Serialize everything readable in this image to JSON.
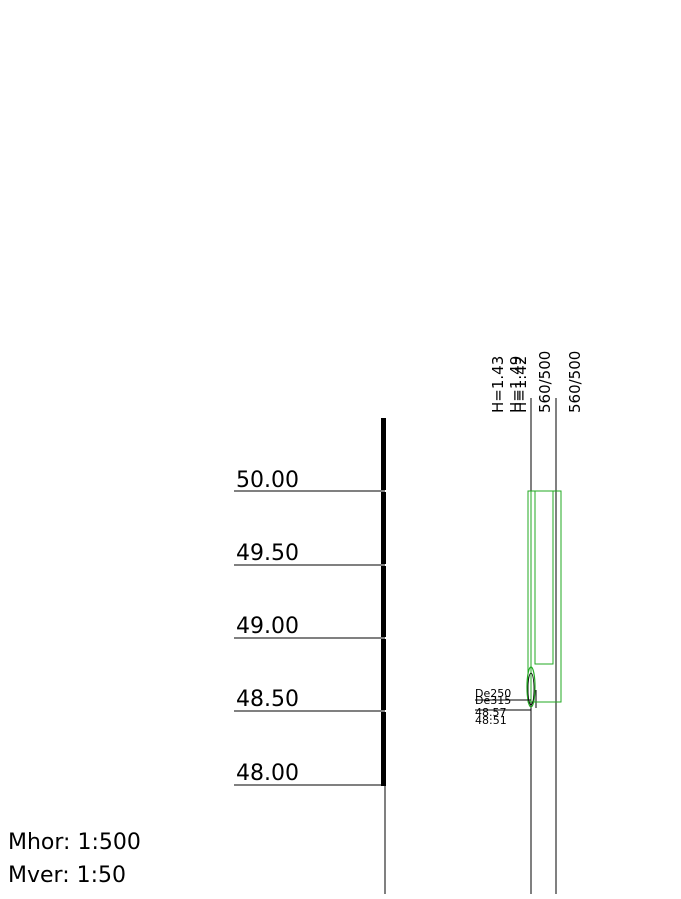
{
  "scale": {
    "horizontal": "Mhor: 1:500",
    "vertical": "Mver: 1:50"
  },
  "elevation_labels": [
    "50.00",
    "49.50",
    "49.00",
    "48.50",
    "48.00"
  ],
  "vertical_labels": [
    "H=1.43",
    "H=1.49",
    "H=1.42",
    "560/500",
    "560/500"
  ],
  "pipe_labels": [
    "De250",
    "De315",
    "48.57",
    "48:51"
  ],
  "colors": {
    "line": "#000000",
    "manhole": "#22aa22",
    "background": "#ffffff"
  }
}
